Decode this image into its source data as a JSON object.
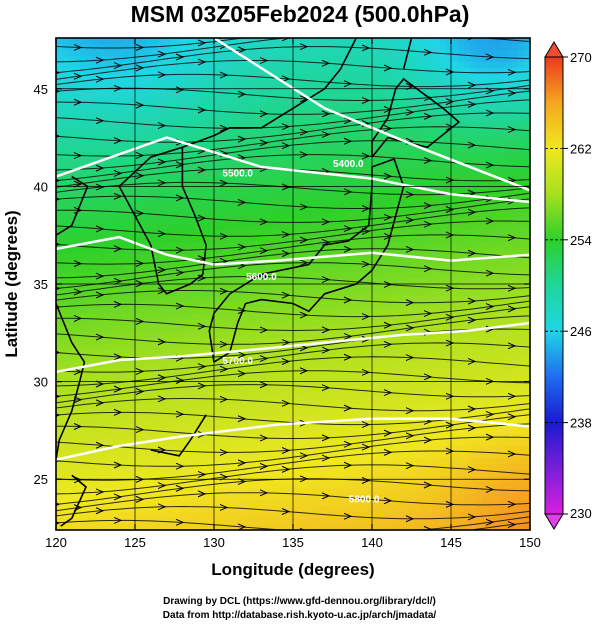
{
  "title": "MSM 03Z05Feb2024 (500.0hPa)",
  "x_axis": {
    "label": "Longitude (degrees)",
    "ticks": [
      "120",
      "125",
      "130",
      "135",
      "140",
      "145",
      "150"
    ]
  },
  "y_axis": {
    "label": "Latitude  (degrees)",
    "ticks": [
      "25",
      "30",
      "35",
      "40",
      "45"
    ]
  },
  "colorbar": {
    "ticks": [
      "270",
      "262",
      "254",
      "246",
      "238",
      "230"
    ],
    "min": 230,
    "max": 270
  },
  "contours": [
    {
      "label": "5400.0"
    },
    {
      "label": "5500.0"
    },
    {
      "label": "5600.0"
    },
    {
      "label": "5700.0"
    },
    {
      "label": "5800.0"
    }
  ],
  "footer": {
    "line1": "Drawing by DCL (https://www.gfd-dennou.org/library/dcl/)",
    "line2": "Data from http://database.rish.kyoto-u.ac.jp/arch/jmadata/"
  },
  "chart_data": {
    "type": "heatmap",
    "title": "MSM 03Z05Feb2024 (500.0hPa)",
    "xlabel": "Longitude (degrees)",
    "ylabel": "Latitude  (degrees)",
    "xlim": [
      120,
      150
    ],
    "ylim": [
      22.4,
      47.6
    ],
    "colorbar_range": [
      230,
      270
    ],
    "colorbar_ticks": [
      230,
      238,
      246,
      254,
      262,
      270
    ],
    "overlays": [
      "streamlines",
      "geopotential height contours",
      "coastlines",
      "grid"
    ],
    "contour_labels": [
      "5400.0",
      "5500.0",
      "5600.0",
      "5700.0",
      "5800.0"
    ],
    "grid": true
  }
}
